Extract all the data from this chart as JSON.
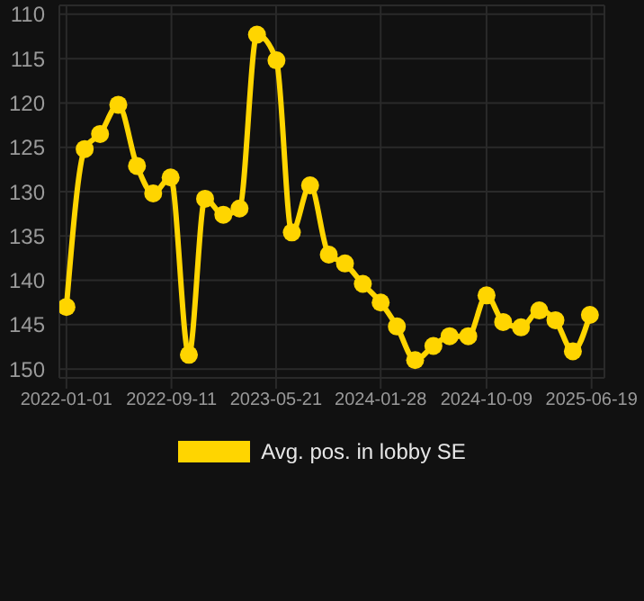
{
  "chart_data": {
    "type": "line",
    "x": [
      "2022-01-01",
      "2022-02-14",
      "2022-03-23",
      "2022-05-06",
      "2022-06-20",
      "2022-07-29",
      "2022-09-09",
      "2022-10-23",
      "2022-12-01",
      "2023-01-14",
      "2023-02-22",
      "2023-04-05",
      "2023-05-22",
      "2023-06-28",
      "2023-08-11",
      "2023-09-25",
      "2023-11-03",
      "2023-12-16",
      "2024-01-28",
      "2024-03-07",
      "2024-04-20",
      "2024-06-03",
      "2024-07-12",
      "2024-08-26",
      "2024-10-09",
      "2024-11-18",
      "2024-12-31",
      "2025-02-13",
      "2025-03-24",
      "2025-05-05",
      "2025-06-15"
    ],
    "series": [
      {
        "name": "Avg. pos. in lobby SE",
        "color": "#ffd500",
        "values": [
          143.0,
          125.2,
          123.5,
          120.2,
          127.1,
          130.2,
          128.4,
          148.4,
          130.8,
          132.6,
          131.9,
          112.3,
          115.2,
          134.6,
          129.3,
          137.1,
          138.1,
          140.4,
          142.5,
          145.2,
          149.0,
          147.4,
          146.3,
          146.3,
          141.7,
          144.7,
          145.3,
          143.4,
          144.5,
          148.0,
          143.9
        ]
      }
    ],
    "xlim": [
      "2021-12-15",
      "2025-07-20"
    ],
    "xticks": [
      {
        "value": "2022-01-01",
        "label": "2022-01-01"
      },
      {
        "value": "2022-09-11",
        "label": "2022-09-11"
      },
      {
        "value": "2023-05-21",
        "label": "2023-05-21"
      },
      {
        "value": "2024-01-28",
        "label": "2024-01-28"
      },
      {
        "value": "2024-10-09",
        "label": "2024-10-09"
      },
      {
        "value": "2025-06-19",
        "label": "2025-06-19"
      }
    ],
    "ylim": [
      151,
      109
    ],
    "yticks": [
      110,
      115,
      120,
      125,
      130,
      135,
      140,
      145,
      150
    ],
    "grid": true,
    "legend": "bottom",
    "marker": "circle",
    "line_style": "solid"
  }
}
